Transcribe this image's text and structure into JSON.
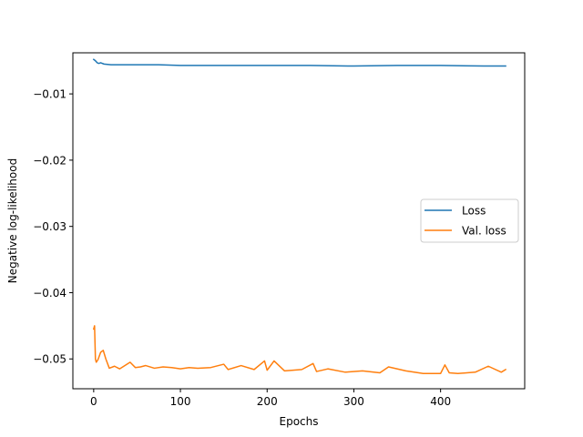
{
  "chart_data": {
    "type": "line",
    "title": "",
    "xlabel": "Epochs",
    "ylabel": "Negative log-likelihood",
    "xlim": [
      -24,
      497
    ],
    "ylim": [
      -0.0545,
      -0.0038
    ],
    "x_ticks": [
      0,
      100,
      200,
      300,
      400
    ],
    "x_tick_labels": [
      "0",
      "100",
      "200",
      "300",
      "400"
    ],
    "y_ticks": [
      -0.01,
      -0.02,
      -0.03,
      -0.04,
      -0.05
    ],
    "y_tick_labels": [
      "−0.01",
      "−0.02",
      "−0.03",
      "−0.04",
      "−0.05"
    ],
    "grid": false,
    "legend_position": "center-right",
    "series": [
      {
        "name": "Loss",
        "color": "#1f77b4",
        "x": [
          0,
          2,
          4,
          6,
          8,
          12,
          20,
          30,
          50,
          75,
          100,
          150,
          200,
          250,
          300,
          350,
          400,
          450,
          475
        ],
        "values": [
          -0.0048,
          -0.005,
          -0.0053,
          -0.0054,
          -0.0053,
          -0.0055,
          -0.0056,
          -0.0056,
          -0.0056,
          -0.0056,
          -0.0057,
          -0.0057,
          -0.0057,
          -0.0057,
          -0.0058,
          -0.0057,
          -0.0057,
          -0.0058,
          -0.0058
        ]
      },
      {
        "name": "Val. loss",
        "color": "#ff7f0e",
        "x": [
          0,
          1,
          2,
          3,
          5,
          8,
          11,
          14,
          18,
          24,
          30,
          36,
          42,
          48,
          54,
          60,
          70,
          80,
          90,
          100,
          110,
          120,
          135,
          150,
          155,
          170,
          185,
          197,
          200,
          208,
          220,
          240,
          253,
          257,
          270,
          290,
          310,
          330,
          340,
          360,
          380,
          400,
          405,
          410,
          420,
          440,
          455,
          470,
          475
        ],
        "values": [
          -0.0455,
          -0.045,
          -0.05,
          -0.0505,
          -0.0501,
          -0.049,
          -0.0487,
          -0.05,
          -0.0514,
          -0.0511,
          -0.0515,
          -0.051,
          -0.0505,
          -0.0513,
          -0.0512,
          -0.051,
          -0.0514,
          -0.0512,
          -0.0513,
          -0.0515,
          -0.0513,
          -0.0514,
          -0.0513,
          -0.0508,
          -0.0516,
          -0.051,
          -0.0516,
          -0.0503,
          -0.0517,
          -0.0503,
          -0.0518,
          -0.0516,
          -0.0507,
          -0.0519,
          -0.0515,
          -0.052,
          -0.0518,
          -0.0521,
          -0.0512,
          -0.0518,
          -0.0522,
          -0.0522,
          -0.0509,
          -0.0521,
          -0.0522,
          -0.052,
          -0.0511,
          -0.052,
          -0.0516
        ]
      }
    ]
  }
}
